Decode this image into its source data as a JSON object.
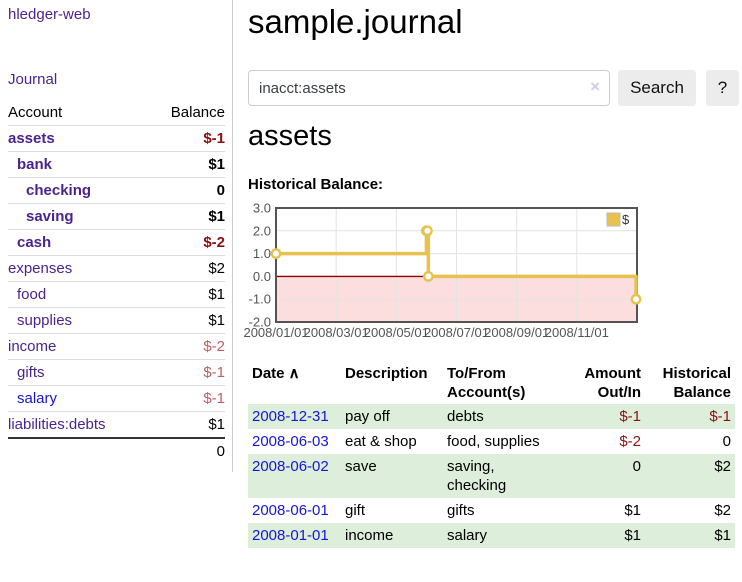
{
  "colors": {
    "link_purple": "#4b2391",
    "link_blue": "#1616d6",
    "negative_strong": "#8b1010",
    "negative_soft": "#bf5f5f",
    "row_shade_green": "#ddeedb",
    "series_gold": "#E8C24E",
    "chart_negative_region": "#FCDEDE",
    "chart_zero_line": "#8B0000",
    "chart_border": "#545454",
    "chart_grid": "#e3e3e3"
  },
  "sidebar": {
    "brand": "hledger-web",
    "nav_journal": "Journal",
    "accounts_table": {
      "headers": [
        "Account",
        "Balance"
      ],
      "rows": [
        {
          "name": "assets",
          "indent": 0,
          "balance": "$-1",
          "bold": true,
          "negative": true
        },
        {
          "name": "bank",
          "indent": 1,
          "balance": "$1",
          "bold": true,
          "negative": false
        },
        {
          "name": "checking",
          "indent": 2,
          "balance": "0",
          "bold": true,
          "negative": false
        },
        {
          "name": "saving",
          "indent": 2,
          "balance": "$1",
          "bold": true,
          "negative": false
        },
        {
          "name": "cash",
          "indent": 1,
          "balance": "$-2",
          "bold": true,
          "negative": true
        },
        {
          "name": "expenses",
          "indent": 0,
          "balance": "$2",
          "bold": false,
          "negative": false
        },
        {
          "name": "food",
          "indent": 1,
          "balance": "$1",
          "bold": false,
          "negative": false
        },
        {
          "name": "supplies",
          "indent": 1,
          "balance": "$1",
          "bold": false,
          "negative": false
        },
        {
          "name": "income",
          "indent": 0,
          "balance": "$-2",
          "bold": false,
          "negative": true
        },
        {
          "name": "gifts",
          "indent": 1,
          "balance": "$-1",
          "bold": false,
          "negative": true
        },
        {
          "name": "salary",
          "indent": 1,
          "balance": "$-1",
          "bold": false,
          "negative": true,
          "blue": true
        },
        {
          "name": "liabilities:debts",
          "indent": 0,
          "balance": "$1",
          "bold": false,
          "negative": false
        }
      ],
      "total": "0"
    }
  },
  "main": {
    "title": "sample.journal",
    "search": {
      "value": "inacct:assets",
      "clear_icon": "×",
      "button": "Search",
      "help_button": "?"
    },
    "account_heading": "assets",
    "chart_label": "Historical Balance:"
  },
  "chart_data": {
    "type": "line",
    "step": true,
    "title": "Historical Balance:",
    "legend": "$",
    "legend_position": "top-right",
    "grid": true,
    "ylim": [
      -2.0,
      3.0
    ],
    "yticks": [
      "3.0",
      "2.0",
      "1.0",
      "0.0",
      "-1.0",
      "-2.0"
    ],
    "xlim": [
      "2008-01-01",
      "2009-01-01"
    ],
    "xticks": [
      "2008/01/01",
      "2008/03/01",
      "2008/05/01",
      "2008/07/01",
      "2008/09/01",
      "2008/11/01"
    ],
    "series": [
      {
        "name": "$",
        "color": "#E8C24E",
        "points": [
          {
            "date": "2008-01-01",
            "value": 1
          },
          {
            "date": "2008-06-01",
            "value": 2
          },
          {
            "date": "2008-06-02",
            "value": 2
          },
          {
            "date": "2008-06-03",
            "value": 0
          },
          {
            "date": "2008-12-31",
            "value": -1
          }
        ]
      }
    ],
    "negative_region_color": "#FCDEDE",
    "zero_line_color": "#8B0000",
    "grid_color": "#e3e3e3",
    "border_color": "#545454"
  },
  "transactions": {
    "headers": {
      "date": "Date",
      "sort_icon": "∧",
      "description": "Description",
      "accounts": "To/From Account(s)",
      "amount": "Amount Out/In",
      "balance": "Historical Balance"
    },
    "rows": [
      {
        "date": "2008-12-31",
        "description": "pay off",
        "accounts": "debts",
        "amount": "$-1",
        "amount_negative": true,
        "balance": "$-1",
        "balance_negative": true
      },
      {
        "date": "2008-06-03",
        "description": "eat & shop",
        "accounts": "food, supplies",
        "amount": "$-2",
        "amount_negative": true,
        "balance": "0",
        "balance_negative": false
      },
      {
        "date": "2008-06-02",
        "description": "save",
        "accounts": "saving, checking",
        "amount": "0",
        "amount_negative": false,
        "balance": "$2",
        "balance_negative": false
      },
      {
        "date": "2008-06-01",
        "description": "gift",
        "accounts": "gifts",
        "amount": "$1",
        "amount_negative": false,
        "balance": "$2",
        "balance_negative": false
      },
      {
        "date": "2008-01-01",
        "description": "income",
        "accounts": "salary",
        "amount": "$1",
        "amount_negative": false,
        "balance": "$1",
        "balance_negative": false
      }
    ]
  }
}
